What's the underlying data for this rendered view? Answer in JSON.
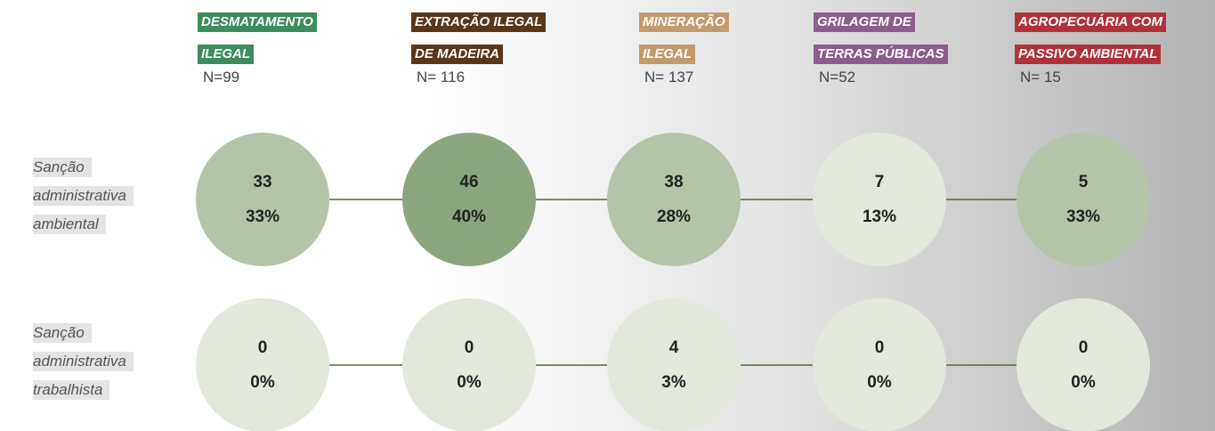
{
  "columns": [
    {
      "label_lines": [
        "DESMATAMENTO",
        "ILEGAL"
      ],
      "n": "N=99",
      "color": "#3d8c5c"
    },
    {
      "label_lines": [
        "EXTRAÇÃO ILEGAL",
        "DE MADEIRA"
      ],
      "n": "N= 116",
      "color": "#5b3619"
    },
    {
      "label_lines": [
        "MINERAÇÃO",
        "ILEGAL"
      ],
      "n": "N= 137",
      "color": "#c39a6d"
    },
    {
      "label_lines": [
        "GRILAGEM DE",
        "TERRAS PÚBLICAS"
      ],
      "n": "N=52",
      "color": "#8e5b8f"
    },
    {
      "label_lines": [
        "AGROPECUÁRIA COM",
        "PASSIVO AMBIENTAL"
      ],
      "n": "N= 15",
      "color": "#b1313a"
    }
  ],
  "rows": [
    {
      "label_lines": [
        "Sanção",
        "administrativa",
        "ambiental"
      ],
      "cells": [
        {
          "count": "33",
          "percent": "33%",
          "color": "#b4c4a9"
        },
        {
          "count": "46",
          "percent": "40%",
          "color": "#8ba57f"
        },
        {
          "count": "38",
          "percent": "28%",
          "color": "#b4c4a9"
        },
        {
          "count": "7",
          "percent": "13%",
          "color": "#e3e8dc"
        },
        {
          "count": "5",
          "percent": "33%",
          "color": "#b4c4a9"
        }
      ]
    },
    {
      "label_lines": [
        "Sanção",
        "administrativa",
        "trabalhista"
      ],
      "cells": [
        {
          "count": "0",
          "percent": "0%",
          "color": "#e3e8dc"
        },
        {
          "count": "0",
          "percent": "0%",
          "color": "#e3e8dc"
        },
        {
          "count": "4",
          "percent": "3%",
          "color": "#e3e8dc"
        },
        {
          "count": "0",
          "percent": "0%",
          "color": "#e3e8dc"
        },
        {
          "count": "0",
          "percent": "0%",
          "color": "#e3e8dc"
        }
      ]
    }
  ]
}
